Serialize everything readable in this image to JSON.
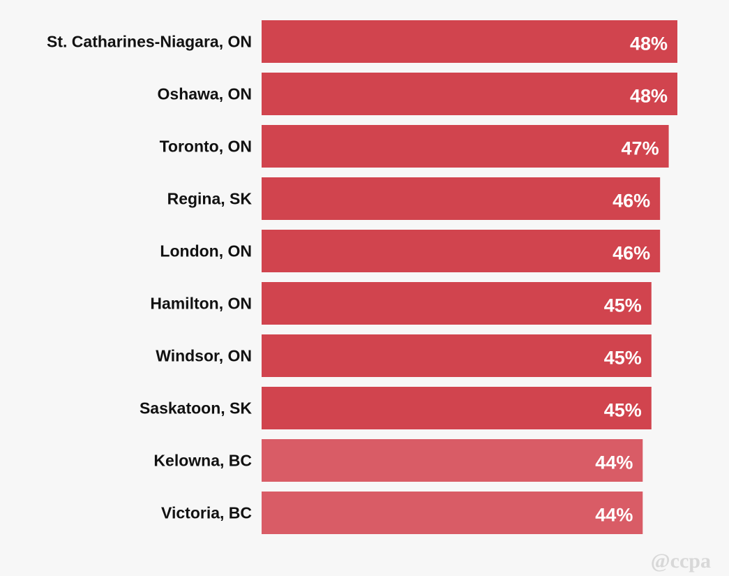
{
  "chart_data": {
    "type": "bar",
    "orientation": "horizontal",
    "categories": [
      "St. Catharines-Niagara, ON",
      "Oshawa, ON",
      "Toronto, ON",
      "Regina, SK",
      "London, ON",
      "Hamilton, ON",
      "Windsor, ON",
      "Saskatoon, SK",
      "Kelowna, BC",
      "Victoria, BC"
    ],
    "values": [
      48,
      48,
      47,
      46,
      46,
      45,
      45,
      45,
      44,
      44
    ],
    "value_labels": [
      "48%",
      "48%",
      "47%",
      "46%",
      "46%",
      "45%",
      "45%",
      "45%",
      "44%",
      "44%"
    ],
    "colors": [
      "#d1444e",
      "#d1444e",
      "#d1444e",
      "#d1444e",
      "#d1444e",
      "#d1444e",
      "#d1444e",
      "#d1444e",
      "#d95c66",
      "#d95c66"
    ],
    "xlim": [
      0,
      48
    ],
    "grid": false,
    "legend": "none",
    "title": "",
    "xlabel": "",
    "ylabel": ""
  },
  "watermark": "@ccpa"
}
